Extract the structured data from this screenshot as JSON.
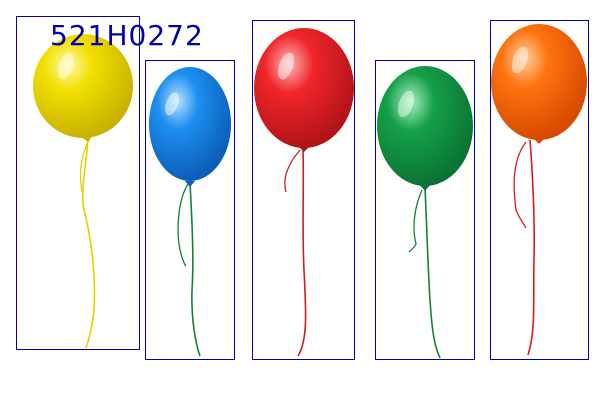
{
  "image": {
    "label_text": "521H0272",
    "annotation_color": "#0000b0",
    "balloons": [
      {
        "name": "yellow-balloon",
        "color": "#f2df00",
        "dark": "#c9b300",
        "ribbon": "#e5cf00"
      },
      {
        "name": "blue-balloon",
        "color": "#1e8ff0",
        "dark": "#0c5fb8",
        "ribbon": "#16803a"
      },
      {
        "name": "red-balloon",
        "color": "#f0262a",
        "dark": "#b3141a",
        "ribbon": "#cc1f1f"
      },
      {
        "name": "green-balloon",
        "color": "#14a04a",
        "dark": "#0b7434",
        "ribbon": "#16803a"
      },
      {
        "name": "orange-balloon",
        "color": "#ff7410",
        "dark": "#d84a00",
        "ribbon": "#d81e1e"
      }
    ]
  }
}
